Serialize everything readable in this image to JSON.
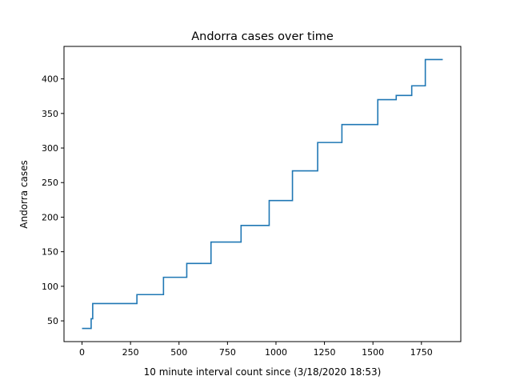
{
  "chart_data": {
    "type": "line",
    "title": "Andorra cases over time",
    "xlabel": "10 minute interval count since (3/18/2020 18:53)",
    "ylabel": "Andorra cases",
    "xlim": [
      -93,
      1953
    ],
    "ylim": [
      20,
      447
    ],
    "xticks": [
      0,
      250,
      500,
      750,
      1000,
      1250,
      1500,
      1750
    ],
    "yticks": [
      50,
      100,
      150,
      200,
      250,
      300,
      350,
      400
    ],
    "grid": false,
    "line_color": "#1f77b4",
    "series": [
      {
        "step": "post",
        "x": [
          0,
          47,
          55,
          65,
          145,
          283,
          420,
          540,
          665,
          820,
          965,
          1085,
          1215,
          1340,
          1525,
          1620,
          1700,
          1770,
          1860
        ],
        "y": [
          39,
          53,
          75,
          75,
          75,
          88,
          113,
          133,
          164,
          188,
          224,
          267,
          308,
          334,
          370,
          376,
          390,
          428,
          428
        ]
      }
    ]
  }
}
